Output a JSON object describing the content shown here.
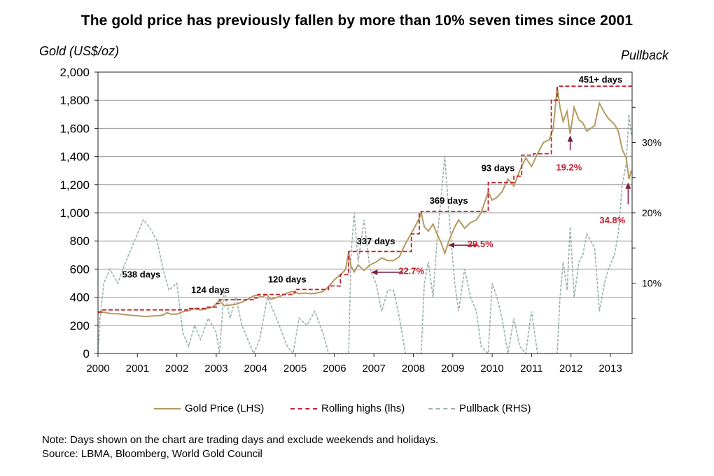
{
  "chart_data": {
    "type": "line",
    "title": "The gold price has previously fallen by more than 10% seven times since 2001",
    "ylabel": "Gold (US$/oz)",
    "y2label": "Pullback",
    "ylim": [
      0,
      2000
    ],
    "yticks": [
      "0",
      "200",
      "400",
      "600",
      "800",
      "1,000",
      "1,200",
      "1,400",
      "1,600",
      "1,800",
      "2,000"
    ],
    "y2lim_pct": [
      0,
      40
    ],
    "y2ticks": [
      "10%",
      "20%",
      "30%"
    ],
    "xlim": [
      2000.0,
      2013.55
    ],
    "xticks": [
      "2000",
      "2001",
      "2002",
      "2003",
      "2004",
      "2005",
      "2006",
      "2007",
      "2008",
      "2009",
      "2010",
      "2011",
      "2012",
      "2013"
    ],
    "grid": "horizontal",
    "legend_position": "bottom",
    "series": [
      {
        "name": "Gold Price (LHS)",
        "color": "#b49a5f",
        "axis": "left",
        "points": [
          [
            2000.0,
            288
          ],
          [
            2000.1,
            295
          ],
          [
            2000.2,
            290
          ],
          [
            2000.35,
            283
          ],
          [
            2000.5,
            282
          ],
          [
            2000.65,
            278
          ],
          [
            2000.8,
            272
          ],
          [
            2001.0,
            268
          ],
          [
            2001.2,
            262
          ],
          [
            2001.35,
            266
          ],
          [
            2001.5,
            268
          ],
          [
            2001.65,
            273
          ],
          [
            2001.75,
            290
          ],
          [
            2001.85,
            280
          ],
          [
            2002.0,
            280
          ],
          [
            2002.15,
            296
          ],
          [
            2002.3,
            305
          ],
          [
            2002.45,
            318
          ],
          [
            2002.6,
            310
          ],
          [
            2002.75,
            318
          ],
          [
            2002.9,
            330
          ],
          [
            2003.0,
            350
          ],
          [
            2003.08,
            378
          ],
          [
            2003.2,
            340
          ],
          [
            2003.35,
            345
          ],
          [
            2003.5,
            350
          ],
          [
            2003.65,
            365
          ],
          [
            2003.8,
            385
          ],
          [
            2003.95,
            410
          ],
          [
            2004.05,
            415
          ],
          [
            2004.15,
            400
          ],
          [
            2004.28,
            420
          ],
          [
            2004.38,
            385
          ],
          [
            2004.5,
            395
          ],
          [
            2004.65,
            410
          ],
          [
            2004.8,
            430
          ],
          [
            2004.95,
            442
          ],
          [
            2005.1,
            425
          ],
          [
            2005.25,
            430
          ],
          [
            2005.4,
            425
          ],
          [
            2005.55,
            430
          ],
          [
            2005.7,
            440
          ],
          [
            2005.85,
            475
          ],
          [
            2006.0,
            525
          ],
          [
            2006.15,
            560
          ],
          [
            2006.28,
            595
          ],
          [
            2006.36,
            720
          ],
          [
            2006.42,
            620
          ],
          [
            2006.5,
            580
          ],
          [
            2006.6,
            630
          ],
          [
            2006.75,
            590
          ],
          [
            2006.9,
            630
          ],
          [
            2007.05,
            650
          ],
          [
            2007.2,
            680
          ],
          [
            2007.35,
            660
          ],
          [
            2007.5,
            660
          ],
          [
            2007.65,
            690
          ],
          [
            2007.8,
            780
          ],
          [
            2008.0,
            880
          ],
          [
            2008.15,
            960
          ],
          [
            2008.2,
            1000
          ],
          [
            2008.28,
            900
          ],
          [
            2008.38,
            870
          ],
          [
            2008.5,
            920
          ],
          [
            2008.6,
            850
          ],
          [
            2008.7,
            790
          ],
          [
            2008.8,
            712
          ],
          [
            2008.9,
            800
          ],
          [
            2009.05,
            900
          ],
          [
            2009.15,
            950
          ],
          [
            2009.3,
            890
          ],
          [
            2009.45,
            930
          ],
          [
            2009.6,
            950
          ],
          [
            2009.72,
            1000
          ],
          [
            2009.9,
            1150
          ],
          [
            2010.0,
            1090
          ],
          [
            2010.12,
            1110
          ],
          [
            2010.25,
            1150
          ],
          [
            2010.4,
            1240
          ],
          [
            2010.55,
            1190
          ],
          [
            2010.7,
            1300
          ],
          [
            2010.85,
            1390
          ],
          [
            2011.0,
            1330
          ],
          [
            2011.15,
            1420
          ],
          [
            2011.3,
            1500
          ],
          [
            2011.45,
            1520
          ],
          [
            2011.55,
            1600
          ],
          [
            2011.65,
            1895
          ],
          [
            2011.72,
            1750
          ],
          [
            2011.8,
            1650
          ],
          [
            2011.9,
            1720
          ],
          [
            2011.98,
            1560
          ],
          [
            2012.08,
            1750
          ],
          [
            2012.2,
            1660
          ],
          [
            2012.3,
            1640
          ],
          [
            2012.4,
            1580
          ],
          [
            2012.5,
            1600
          ],
          [
            2012.6,
            1620
          ],
          [
            2012.72,
            1780
          ],
          [
            2012.85,
            1710
          ],
          [
            2012.95,
            1670
          ],
          [
            2013.1,
            1630
          ],
          [
            2013.2,
            1580
          ],
          [
            2013.3,
            1450
          ],
          [
            2013.4,
            1390
          ],
          [
            2013.47,
            1240
          ],
          [
            2013.53,
            1300
          ]
        ]
      },
      {
        "name": "Rolling highs (lhs)",
        "color": "#c0202f",
        "axis": "left",
        "points": [
          [
            2000.0,
            295
          ],
          [
            2000.1,
            310
          ],
          [
            2002.05,
            310
          ],
          [
            2002.3,
            320
          ],
          [
            2002.75,
            330
          ],
          [
            2003.0,
            355
          ],
          [
            2003.08,
            382
          ],
          [
            2003.95,
            395
          ],
          [
            2004.05,
            420
          ],
          [
            2004.95,
            430
          ],
          [
            2005.0,
            455
          ],
          [
            2005.7,
            455
          ],
          [
            2005.85,
            480
          ],
          [
            2006.15,
            560
          ],
          [
            2006.36,
            725
          ],
          [
            2007.8,
            725
          ],
          [
            2007.95,
            850
          ],
          [
            2008.15,
            1000
          ],
          [
            2008.2,
            1010
          ],
          [
            2009.85,
            1010
          ],
          [
            2009.9,
            1215
          ],
          [
            2010.35,
            1215
          ],
          [
            2010.55,
            1260
          ],
          [
            2010.75,
            1410
          ],
          [
            2011.05,
            1420
          ],
          [
            2011.5,
            1800
          ],
          [
            2011.65,
            1900
          ],
          [
            2013.55,
            1900
          ]
        ]
      },
      {
        "name": "Pullback (RHS)",
        "color": "#9cb3ae",
        "axis": "right",
        "points_pct": [
          [
            2000.0,
            0
          ],
          [
            2000.05,
            5
          ],
          [
            2000.15,
            10
          ],
          [
            2000.3,
            12
          ],
          [
            2000.5,
            10
          ],
          [
            2000.7,
            13
          ],
          [
            2000.85,
            15
          ],
          [
            2001.0,
            17
          ],
          [
            2001.15,
            19
          ],
          [
            2001.3,
            18
          ],
          [
            2001.5,
            16
          ],
          [
            2001.65,
            12
          ],
          [
            2001.8,
            9
          ],
          [
            2002.0,
            10
          ],
          [
            2002.15,
            3
          ],
          [
            2002.3,
            1
          ],
          [
            2002.45,
            4
          ],
          [
            2002.6,
            2
          ],
          [
            2002.8,
            5
          ],
          [
            2003.0,
            3
          ],
          [
            2003.08,
            0
          ],
          [
            2003.2,
            9
          ],
          [
            2003.35,
            5
          ],
          [
            2003.5,
            8
          ],
          [
            2003.65,
            4
          ],
          [
            2003.8,
            2
          ],
          [
            2003.95,
            0
          ],
          [
            2004.1,
            2
          ],
          [
            2004.3,
            8
          ],
          [
            2004.45,
            6
          ],
          [
            2004.6,
            4
          ],
          [
            2004.8,
            1
          ],
          [
            2004.95,
            0
          ],
          [
            2005.1,
            5
          ],
          [
            2005.3,
            4
          ],
          [
            2005.5,
            6
          ],
          [
            2005.7,
            3
          ],
          [
            2005.85,
            0
          ],
          [
            2006.0,
            0
          ],
          [
            2006.36,
            0
          ],
          [
            2006.42,
            14
          ],
          [
            2006.5,
            20
          ],
          [
            2006.6,
            13
          ],
          [
            2006.75,
            19
          ],
          [
            2006.9,
            12
          ],
          [
            2007.05,
            10
          ],
          [
            2007.2,
            6
          ],
          [
            2007.35,
            9
          ],
          [
            2007.5,
            9
          ],
          [
            2007.65,
            5
          ],
          [
            2007.8,
            0
          ],
          [
            2008.0,
            0
          ],
          [
            2008.2,
            0
          ],
          [
            2008.28,
            10
          ],
          [
            2008.38,
            13
          ],
          [
            2008.5,
            8
          ],
          [
            2008.6,
            16
          ],
          [
            2008.7,
            22
          ],
          [
            2008.8,
            28
          ],
          [
            2008.9,
            20
          ],
          [
            2009.05,
            10
          ],
          [
            2009.15,
            6
          ],
          [
            2009.3,
            12
          ],
          [
            2009.45,
            8
          ],
          [
            2009.6,
            6
          ],
          [
            2009.72,
            1
          ],
          [
            2009.9,
            0
          ],
          [
            2010.0,
            10
          ],
          [
            2010.12,
            8
          ],
          [
            2010.25,
            5
          ],
          [
            2010.4,
            0
          ],
          [
            2010.55,
            5
          ],
          [
            2010.7,
            1
          ],
          [
            2010.85,
            0
          ],
          [
            2011.0,
            6
          ],
          [
            2011.15,
            0
          ],
          [
            2011.45,
            0
          ],
          [
            2011.65,
            0
          ],
          [
            2011.72,
            8
          ],
          [
            2011.8,
            13
          ],
          [
            2011.9,
            9
          ],
          [
            2011.98,
            18
          ],
          [
            2012.08,
            8
          ],
          [
            2012.2,
            13
          ],
          [
            2012.3,
            14
          ],
          [
            2012.4,
            17
          ],
          [
            2012.5,
            16
          ],
          [
            2012.6,
            15
          ],
          [
            2012.72,
            6
          ],
          [
            2012.85,
            10
          ],
          [
            2012.95,
            12
          ],
          [
            2013.1,
            14
          ],
          [
            2013.2,
            17
          ],
          [
            2013.3,
            24
          ],
          [
            2013.4,
            27
          ],
          [
            2013.47,
            34
          ],
          [
            2013.53,
            31
          ]
        ]
      }
    ],
    "annotations": {
      "days": [
        {
          "text": "538 days",
          "x": 2001.1,
          "y": 540
        },
        {
          "text": "124 days",
          "x": 2002.85,
          "y": 430
        },
        {
          "text": "120 days",
          "x": 2004.8,
          "y": 505
        },
        {
          "text": "337 days",
          "x": 2007.05,
          "y": 775
        },
        {
          "text": "369 days",
          "x": 2008.9,
          "y": 1065
        },
        {
          "text": "93 days",
          "x": 2010.15,
          "y": 1295
        },
        {
          "text": "451+ days",
          "x": 2012.75,
          "y": 1925
        }
      ],
      "pullbacks": [
        {
          "text": "22.7%",
          "x": 2007.95,
          "y": 565,
          "arrow_from": [
            2007.75,
            577
          ],
          "arrow_to": [
            2006.95,
            577
          ]
        },
        {
          "text": "29.5%",
          "x": 2009.7,
          "y": 755,
          "arrow_from": [
            2009.65,
            770
          ],
          "arrow_to": [
            2008.9,
            770
          ]
        },
        {
          "text": "19.2%",
          "x": 2011.95,
          "y": 1300,
          "arrow_from": [
            2011.98,
            1445
          ],
          "arrow_to": [
            2011.98,
            1545
          ]
        },
        {
          "text": "34.8%",
          "x": 2013.05,
          "y": 925,
          "arrow_from": [
            2013.45,
            1060
          ],
          "arrow_to": [
            2013.45,
            1210
          ]
        }
      ]
    }
  },
  "footer": {
    "note": "Note: Days shown on the chart are trading days and exclude weekends and holidays.",
    "source": "Source: LBMA, Bloomberg, World Gold Council"
  }
}
